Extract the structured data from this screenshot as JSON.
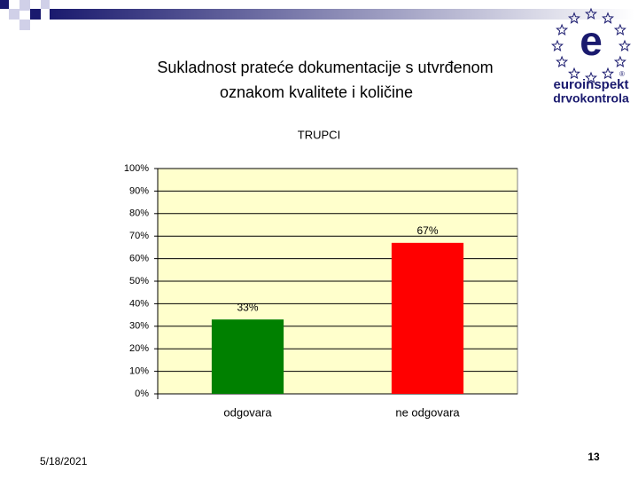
{
  "slide": {
    "title_lines": [
      "Sukladnost prateće dokumentacije s utvrđenom",
      "oznakom kvalitete i količine"
    ],
    "logo": {
      "letter": "e",
      "registered": "®",
      "line1": "euroinspekt",
      "line2": "drvokontrola"
    },
    "date": "5/18/2021",
    "page_number": "13"
  },
  "chart_data": {
    "type": "bar",
    "title": "TRUPCI",
    "categories": [
      "odgovara",
      "ne odgovara"
    ],
    "values": [
      33,
      67
    ],
    "value_labels": [
      "33%",
      "67%"
    ],
    "colors": [
      "#008000",
      "#ff0000"
    ],
    "ylim": [
      0,
      100
    ],
    "yticks": [
      {
        "value": 0,
        "label": "0%"
      },
      {
        "value": 10,
        "label": "10%"
      },
      {
        "value": 20,
        "label": "20%"
      },
      {
        "value": 30,
        "label": "30%"
      },
      {
        "value": 40,
        "label": "40%"
      },
      {
        "value": 50,
        "label": "50%"
      },
      {
        "value": 60,
        "label": "60%"
      },
      {
        "value": 70,
        "label": "70%"
      },
      {
        "value": 80,
        "label": "80%"
      },
      {
        "value": 90,
        "label": "90%"
      },
      {
        "value": 100,
        "label": "100%"
      }
    ],
    "grid": true,
    "plot_background": "#ffffcc"
  }
}
